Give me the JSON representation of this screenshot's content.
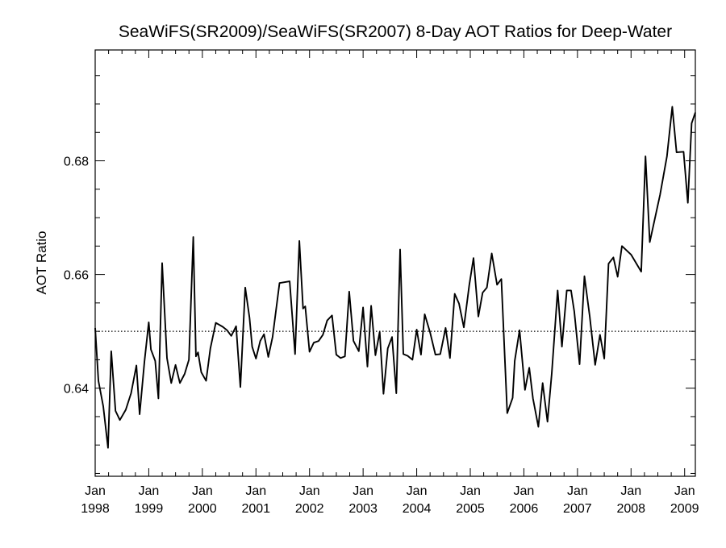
{
  "chart_data": {
    "type": "line",
    "title": "SeaWiFS(SR2009)/SeaWiFS(SR2007) 8-Day AOT Ratios for Deep-Water",
    "xlabel": "",
    "ylabel": "AOT Ratio",
    "xlim": [
      1998.0,
      2009.2
    ],
    "ylim": [
      0.6245,
      0.6995
    ],
    "x_ticks": [
      {
        "month": "Jan",
        "year": "1998",
        "x": 1998.0
      },
      {
        "month": "Jan",
        "year": "1999",
        "x": 1999.0
      },
      {
        "month": "Jan",
        "year": "2000",
        "x": 2000.0
      },
      {
        "month": "Jan",
        "year": "2001",
        "x": 2001.0
      },
      {
        "month": "Jan",
        "year": "2002",
        "x": 2002.0
      },
      {
        "month": "Jan",
        "year": "2003",
        "x": 2003.0
      },
      {
        "month": "Jan",
        "year": "2004",
        "x": 2004.0
      },
      {
        "month": "Jan",
        "year": "2005",
        "x": 2005.0
      },
      {
        "month": "Jan",
        "year": "2006",
        "x": 2006.0
      },
      {
        "month": "Jan",
        "year": "2007",
        "x": 2007.0
      },
      {
        "month": "Jan",
        "year": "2008",
        "x": 2008.0
      },
      {
        "month": "Jan",
        "year": "2009",
        "x": 2009.0
      }
    ],
    "y_ticks": [
      {
        "value": 0.64,
        "label": "0.64"
      },
      {
        "value": 0.66,
        "label": "0.66"
      },
      {
        "value": 0.68,
        "label": "0.68"
      }
    ],
    "reference_line": {
      "y": 0.65,
      "style": "dotted"
    },
    "grid": false,
    "series": [
      {
        "values": [
          [
            1998.0,
            0.6506
          ],
          [
            1998.06,
            0.6413
          ],
          [
            1998.15,
            0.6368
          ],
          [
            1998.24,
            0.6295
          ],
          [
            1998.3,
            0.6465
          ],
          [
            1998.38,
            0.636
          ],
          [
            1998.46,
            0.6344
          ],
          [
            1998.57,
            0.6362
          ],
          [
            1998.67,
            0.6391
          ],
          [
            1998.77,
            0.644
          ],
          [
            1998.83,
            0.6354
          ],
          [
            1998.92,
            0.6447
          ],
          [
            1999.0,
            0.6516
          ],
          [
            1999.04,
            0.6468
          ],
          [
            1999.12,
            0.6448
          ],
          [
            1999.18,
            0.6382
          ],
          [
            1999.25,
            0.662
          ],
          [
            1999.34,
            0.6453
          ],
          [
            1999.42,
            0.6409
          ],
          [
            1999.5,
            0.6441
          ],
          [
            1999.58,
            0.6409
          ],
          [
            1999.67,
            0.6425
          ],
          [
            1999.75,
            0.645
          ],
          [
            1999.83,
            0.6666
          ],
          [
            1999.88,
            0.6456
          ],
          [
            1999.92,
            0.6463
          ],
          [
            1999.98,
            0.6428
          ],
          [
            2000.07,
            0.6413
          ],
          [
            2000.15,
            0.647
          ],
          [
            2000.25,
            0.6515
          ],
          [
            2000.38,
            0.6508
          ],
          [
            2000.46,
            0.6502
          ],
          [
            2000.54,
            0.6492
          ],
          [
            2000.63,
            0.6509
          ],
          [
            2000.71,
            0.6402
          ],
          [
            2000.8,
            0.6577
          ],
          [
            2000.88,
            0.6524
          ],
          [
            2000.93,
            0.6473
          ],
          [
            2001.0,
            0.6452
          ],
          [
            2001.08,
            0.6483
          ],
          [
            2001.15,
            0.6495
          ],
          [
            2001.23,
            0.6455
          ],
          [
            2001.31,
            0.649
          ],
          [
            2001.44,
            0.6585
          ],
          [
            2001.63,
            0.6588
          ],
          [
            2001.73,
            0.646
          ],
          [
            2001.81,
            0.6659
          ],
          [
            2001.88,
            0.654
          ],
          [
            2001.92,
            0.6544
          ],
          [
            2002.0,
            0.6464
          ],
          [
            2002.08,
            0.648
          ],
          [
            2002.17,
            0.6483
          ],
          [
            2002.25,
            0.6494
          ],
          [
            2002.33,
            0.6519
          ],
          [
            2002.42,
            0.6528
          ],
          [
            2002.5,
            0.6459
          ],
          [
            2002.58,
            0.6453
          ],
          [
            2002.66,
            0.6456
          ],
          [
            2002.74,
            0.657
          ],
          [
            2002.82,
            0.6483
          ],
          [
            2002.92,
            0.6465
          ],
          [
            2003.0,
            0.6542
          ],
          [
            2003.08,
            0.6438
          ],
          [
            2003.15,
            0.6545
          ],
          [
            2003.23,
            0.6458
          ],
          [
            2003.31,
            0.6499
          ],
          [
            2003.38,
            0.639
          ],
          [
            2003.46,
            0.647
          ],
          [
            2003.54,
            0.649
          ],
          [
            2003.62,
            0.6391
          ],
          [
            2003.69,
            0.6644
          ],
          [
            2003.75,
            0.646
          ],
          [
            2003.83,
            0.6457
          ],
          [
            2003.92,
            0.645
          ],
          [
            2004.0,
            0.6503
          ],
          [
            2004.08,
            0.6459
          ],
          [
            2004.15,
            0.653
          ],
          [
            2004.25,
            0.6498
          ],
          [
            2004.35,
            0.6459
          ],
          [
            2004.44,
            0.646
          ],
          [
            2004.54,
            0.6506
          ],
          [
            2004.62,
            0.6453
          ],
          [
            2004.71,
            0.6566
          ],
          [
            2004.79,
            0.6549
          ],
          [
            2004.88,
            0.6507
          ],
          [
            2004.98,
            0.6581
          ],
          [
            2005.06,
            0.6629
          ],
          [
            2005.15,
            0.6526
          ],
          [
            2005.23,
            0.6568
          ],
          [
            2005.31,
            0.6577
          ],
          [
            2005.4,
            0.6637
          ],
          [
            2005.5,
            0.6582
          ],
          [
            2005.58,
            0.6592
          ],
          [
            2005.69,
            0.6356
          ],
          [
            2005.79,
            0.6383
          ],
          [
            2005.83,
            0.6448
          ],
          [
            2005.92,
            0.6502
          ],
          [
            2006.02,
            0.6397
          ],
          [
            2006.1,
            0.6436
          ],
          [
            2006.17,
            0.6382
          ],
          [
            2006.27,
            0.6332
          ],
          [
            2006.35,
            0.6409
          ],
          [
            2006.44,
            0.6341
          ],
          [
            2006.52,
            0.6426
          ],
          [
            2006.63,
            0.6572
          ],
          [
            2006.71,
            0.6473
          ],
          [
            2006.8,
            0.6572
          ],
          [
            2006.88,
            0.6572
          ],
          [
            2006.94,
            0.6535
          ],
          [
            2007.04,
            0.6442
          ],
          [
            2007.13,
            0.6597
          ],
          [
            2007.23,
            0.6526
          ],
          [
            2007.33,
            0.6441
          ],
          [
            2007.42,
            0.6494
          ],
          [
            2007.5,
            0.6452
          ],
          [
            2007.58,
            0.6619
          ],
          [
            2007.67,
            0.663
          ],
          [
            2007.75,
            0.6596
          ],
          [
            2007.83,
            0.665
          ],
          [
            2008.0,
            0.6635
          ],
          [
            2008.19,
            0.6605
          ],
          [
            2008.27,
            0.6808
          ],
          [
            2008.35,
            0.6657
          ],
          [
            2008.54,
            0.674
          ],
          [
            2008.67,
            0.6808
          ],
          [
            2008.77,
            0.6895
          ],
          [
            2008.85,
            0.6815
          ],
          [
            2008.98,
            0.6816
          ],
          [
            2009.06,
            0.6726
          ],
          [
            2009.13,
            0.6866
          ],
          [
            2009.2,
            0.6885
          ]
        ]
      }
    ]
  }
}
